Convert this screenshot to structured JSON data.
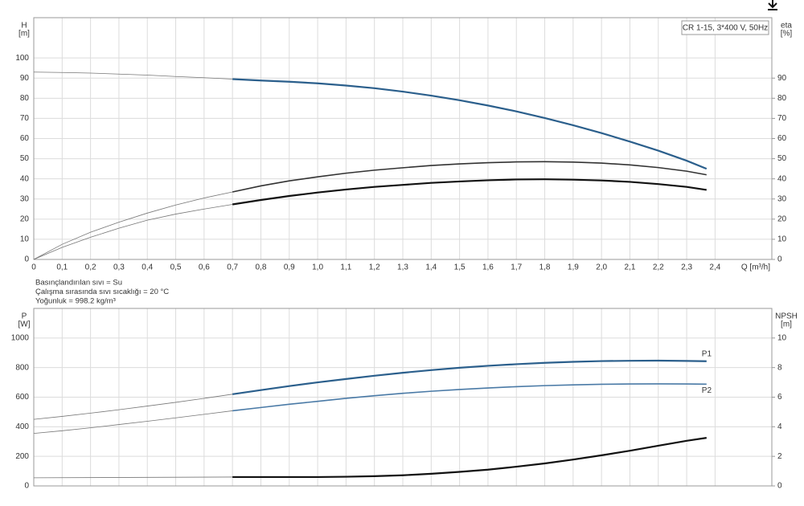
{
  "chart_data": [
    {
      "type": "line",
      "annotation": "CR 1-15, 3*400 V, 50Hz",
      "ylabel": [
        "H",
        "[m]"
      ],
      "y2label": [
        "eta",
        "[%]"
      ],
      "xlabel": "Q [m³/h]",
      "xlim": [
        0,
        2.6
      ],
      "ylim": [
        0,
        120
      ],
      "y2lim": [
        0,
        120
      ],
      "xticks": [
        0,
        {
          "value": 0.1,
          "label": "0,1"
        },
        {
          "value": 0.2,
          "label": "0,2"
        },
        {
          "value": 0.3,
          "label": "0,3"
        },
        {
          "value": 0.4,
          "label": "0,4"
        },
        {
          "value": 0.5,
          "label": "0,5"
        },
        {
          "value": 0.6,
          "label": "0,6"
        },
        {
          "value": 0.7,
          "label": "0,7"
        },
        {
          "value": 0.8,
          "label": "0,8"
        },
        {
          "value": 0.9,
          "label": "0,9"
        },
        {
          "value": 1,
          "label": "1,0"
        },
        {
          "value": 1.1,
          "label": "1,1"
        },
        {
          "value": 1.2,
          "label": "1,2"
        },
        {
          "value": 1.3,
          "label": "1,3"
        },
        {
          "value": 1.4,
          "label": "1,4"
        },
        {
          "value": 1.5,
          "label": "1,5"
        },
        {
          "value": 1.6,
          "label": "1,6"
        },
        {
          "value": 1.7,
          "label": "1,7"
        },
        {
          "value": 1.8,
          "label": "1,8"
        },
        {
          "value": 1.9,
          "label": "1,9"
        },
        {
          "value": 2,
          "label": "2,0"
        },
        {
          "value": 2.1,
          "label": "2,1"
        },
        {
          "value": 2.2,
          "label": "2,2"
        },
        {
          "value": 2.3,
          "label": "2,3"
        },
        {
          "value": 2.4,
          "label": "2,4"
        }
      ],
      "yticks": [
        0,
        10,
        20,
        30,
        40,
        50,
        60,
        70,
        80,
        90,
        100
      ],
      "y2ticks": [
        0,
        10,
        20,
        30,
        40,
        50,
        60,
        70,
        80,
        90
      ],
      "grid": true,
      "notes": [
        "Basınçlandırılan sıvı = Su",
        "Çalışma sırasında sıvı sıcaklığı = 20 °C",
        "Yoğunluk = 998.2 kg/m³"
      ],
      "series": [
        {
          "color": "#777777",
          "linewidth": 0.8,
          "x": [
            0,
            0.1,
            0.2,
            0.3,
            0.4,
            0.5,
            0.6,
            0.7
          ],
          "values": [
            93,
            92.8,
            92.5,
            92,
            91.5,
            90.8,
            90.2,
            89.5
          ]
        },
        {
          "color": "#2b5f8c",
          "linewidth": 2.2,
          "x": [
            0.7,
            0.8,
            0.9,
            1,
            1.1,
            1.2,
            1.3,
            1.4,
            1.5,
            1.6,
            1.7,
            1.8,
            1.9,
            2,
            2.1,
            2.2,
            2.3,
            2.37
          ],
          "values": [
            89.5,
            88.8,
            88.2,
            87.4,
            86.3,
            85,
            83.3,
            81.3,
            79,
            76.4,
            73.5,
            70.2,
            66.6,
            62.7,
            58.5,
            54,
            49,
            45
          ]
        },
        {
          "color": "#777777",
          "linewidth": 0.8,
          "axis": "y2",
          "x": [
            0,
            0.1,
            0.2,
            0.3,
            0.4,
            0.5,
            0.6,
            0.7
          ],
          "values": [
            0,
            7.5,
            13.5,
            18.5,
            23,
            27,
            30.5,
            33.5
          ]
        },
        {
          "color": "#333333",
          "linewidth": 1.6,
          "axis": "y2",
          "x": [
            0.7,
            0.8,
            0.9,
            1,
            1.1,
            1.2,
            1.3,
            1.4,
            1.5,
            1.6,
            1.7,
            1.8,
            1.9,
            2,
            2.1,
            2.2,
            2.3,
            2.37
          ],
          "values": [
            33.5,
            36.5,
            39,
            41,
            42.8,
            44.3,
            45.5,
            46.6,
            47.4,
            48,
            48.4,
            48.5,
            48.3,
            47.8,
            46.9,
            45.6,
            43.8,
            42
          ]
        },
        {
          "color": "#777777",
          "linewidth": 0.8,
          "axis": "y2",
          "x": [
            0,
            0.1,
            0.2,
            0.3,
            0.4,
            0.5,
            0.6,
            0.7
          ],
          "values": [
            0,
            6,
            11,
            15.5,
            19.5,
            22.5,
            25,
            27.3
          ]
        },
        {
          "color": "#111111",
          "linewidth": 2.2,
          "axis": "y2",
          "x": [
            0.7,
            0.8,
            0.9,
            1,
            1.1,
            1.2,
            1.3,
            1.4,
            1.5,
            1.6,
            1.7,
            1.8,
            1.9,
            2,
            2.1,
            2.2,
            2.3,
            2.37
          ],
          "values": [
            27.3,
            29.5,
            31.5,
            33.2,
            34.7,
            36,
            37,
            38,
            38.7,
            39.3,
            39.7,
            39.8,
            39.6,
            39.2,
            38.5,
            37.4,
            36,
            34.5
          ]
        }
      ]
    },
    {
      "type": "line",
      "ylabel": [
        "P",
        "[W]"
      ],
      "y2label": [
        "NPSH",
        "[m]"
      ],
      "xlim": [
        0,
        2.6
      ],
      "ylim": [
        0,
        1200
      ],
      "y2lim": [
        0,
        12
      ],
      "xticks": [
        0,
        0.1,
        0.2,
        0.3,
        0.4,
        0.5,
        0.6,
        0.7,
        0.8,
        0.9,
        1,
        1.1,
        1.2,
        1.3,
        1.4,
        1.5,
        1.6,
        1.7,
        1.8,
        1.9,
        2,
        2.1,
        2.2,
        2.3,
        2.4
      ],
      "xtick_labels": false,
      "yticks": [
        0,
        200,
        400,
        600,
        800,
        1000
      ],
      "y2ticks": [
        0,
        2,
        4,
        6,
        8,
        10
      ],
      "grid": true,
      "series": [
        {
          "color": "#777777",
          "linewidth": 0.8,
          "x": [
            0,
            0.1,
            0.2,
            0.3,
            0.4,
            0.5,
            0.6,
            0.7
          ],
          "values": [
            450,
            470,
            492,
            515,
            540,
            565,
            592,
            620
          ]
        },
        {
          "name": "P1",
          "color": "#2b5f8c",
          "linewidth": 2.2,
          "x": [
            0.7,
            0.8,
            0.9,
            1,
            1.1,
            1.2,
            1.3,
            1.4,
            1.5,
            1.6,
            1.7,
            1.8,
            1.9,
            2,
            2.1,
            2.2,
            2.3,
            2.37
          ],
          "values": [
            620,
            648,
            675,
            700,
            723,
            745,
            765,
            783,
            799,
            812,
            823,
            832,
            839,
            844,
            846,
            847,
            845,
            843
          ]
        },
        {
          "color": "#777777",
          "linewidth": 0.8,
          "x": [
            0,
            0.1,
            0.2,
            0.3,
            0.4,
            0.5,
            0.6,
            0.7
          ],
          "values": [
            355,
            373,
            393,
            415,
            437,
            460,
            484,
            508
          ]
        },
        {
          "name": "P2",
          "color": "#4a7aa6",
          "linewidth": 1.6,
          "x": [
            0.7,
            0.8,
            0.9,
            1,
            1.1,
            1.2,
            1.3,
            1.4,
            1.5,
            1.6,
            1.7,
            1.8,
            1.9,
            2,
            2.1,
            2.2,
            2.3,
            2.37
          ],
          "values": [
            508,
            530,
            552,
            572,
            592,
            610,
            626,
            640,
            652,
            662,
            671,
            678,
            683,
            687,
            689,
            690,
            689,
            688
          ]
        },
        {
          "color": "#777777",
          "linewidth": 0.8,
          "axis": "y2",
          "x": [
            0,
            0.7
          ],
          "values": [
            0.55,
            0.6
          ]
        },
        {
          "color": "#111111",
          "linewidth": 2.2,
          "axis": "y2",
          "x": [
            0.7,
            0.8,
            0.9,
            1,
            1.1,
            1.2,
            1.3,
            1.4,
            1.5,
            1.6,
            1.7,
            1.8,
            1.9,
            2,
            2.1,
            2.2,
            2.3,
            2.37
          ],
          "values": [
            0.6,
            0.6,
            0.6,
            0.6,
            0.62,
            0.66,
            0.72,
            0.82,
            0.95,
            1.1,
            1.3,
            1.52,
            1.78,
            2.07,
            2.38,
            2.72,
            3.05,
            3.25
          ]
        }
      ]
    }
  ]
}
